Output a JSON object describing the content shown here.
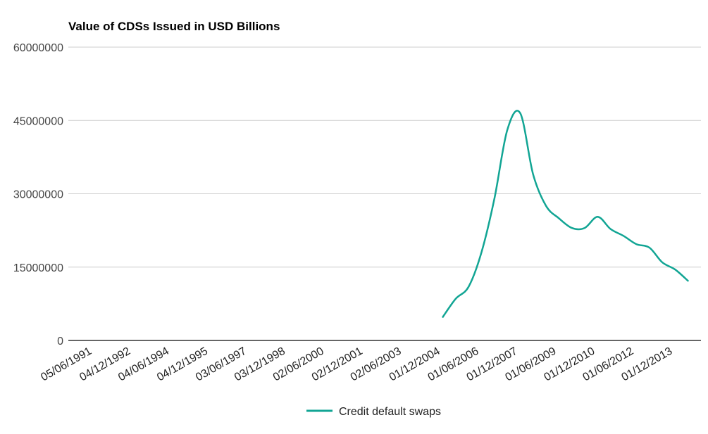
{
  "chart_data": {
    "type": "line",
    "title": "Value of CDSs Issued in USD Billions",
    "xlabel": "",
    "ylabel": "",
    "ylim": [
      0,
      60000000
    ],
    "yticks": [
      "0",
      "15000000",
      "30000000",
      "45000000",
      "60000000"
    ],
    "xticks": [
      "05/06/1991",
      "04/12/1992",
      "04/06/1994",
      "04/12/1995",
      "03/06/1997",
      "03/12/1998",
      "02/06/2000",
      "02/12/2001",
      "02/06/2003",
      "01/12/2004",
      "01/06/2006",
      "01/12/2007",
      "01/06/2009",
      "01/12/2010",
      "01/06/2012",
      "01/12/2013"
    ],
    "grid": true,
    "legend_position": "bottom",
    "colors": {
      "series": "#12a594",
      "grid": "#cccccc",
      "axis": "#333333"
    },
    "series": [
      {
        "name": "Credit default swaps",
        "points": [
          {
            "x": "31/12/2004",
            "y": 4800000
          },
          {
            "x": "30/06/2005",
            "y": 8500000
          },
          {
            "x": "31/12/2005",
            "y": 11000000
          },
          {
            "x": "30/06/2006",
            "y": 18000000
          },
          {
            "x": "31/12/2006",
            "y": 29000000
          },
          {
            "x": "30/06/2007",
            "y": 43000000
          },
          {
            "x": "31/12/2007",
            "y": 46500000
          },
          {
            "x": "30/06/2008",
            "y": 34000000
          },
          {
            "x": "31/12/2008",
            "y": 27500000
          },
          {
            "x": "30/06/2009",
            "y": 25000000
          },
          {
            "x": "31/12/2009",
            "y": 23000000
          },
          {
            "x": "30/06/2010",
            "y": 23000000
          },
          {
            "x": "31/12/2010",
            "y": 25300000
          },
          {
            "x": "30/06/2011",
            "y": 22800000
          },
          {
            "x": "31/12/2011",
            "y": 21400000
          },
          {
            "x": "30/06/2012",
            "y": 19700000
          },
          {
            "x": "31/12/2012",
            "y": 19000000
          },
          {
            "x": "30/06/2013",
            "y": 16000000
          },
          {
            "x": "31/12/2013",
            "y": 14500000
          },
          {
            "x": "30/06/2014",
            "y": 12200000
          }
        ]
      }
    ]
  }
}
